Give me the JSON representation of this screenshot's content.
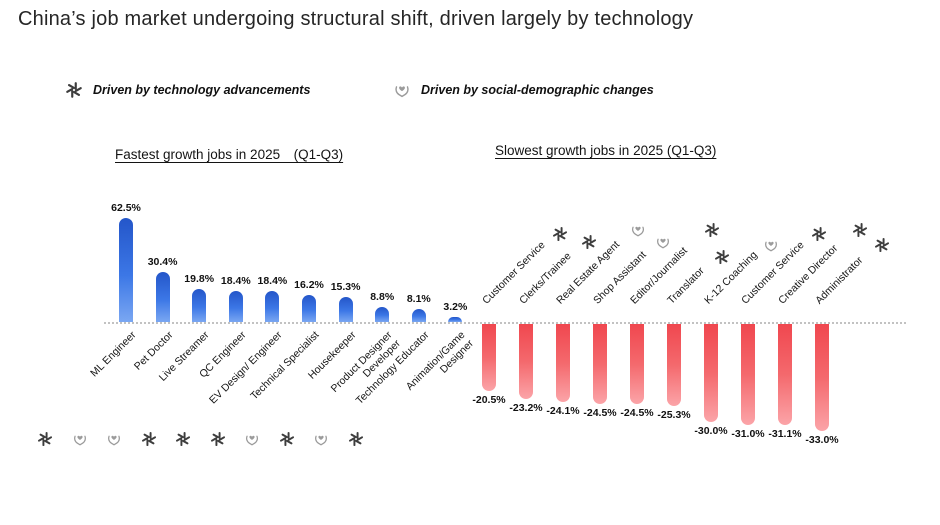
{
  "page_title": "China’s job market undergoing structural shift, driven largely by technology",
  "legend": {
    "items": [
      {
        "label": "Driven by technology advancements",
        "icon": "openai-logo-icon",
        "driver": "tech"
      },
      {
        "label": "Driven by social-demographic changes",
        "icon": "heart-hands-icon",
        "driver": "social"
      }
    ]
  },
  "colors": {
    "positive_bar": "#2a66dd",
    "negative_bar": "#f2575b",
    "tech_icon": "#3d3d3d",
    "social_icon": "#9b9b9b",
    "baseline": "#c2c2c2"
  },
  "chart_data": [
    {
      "type": "bar",
      "title": "Fastest growth jobs in 2025　(Q1-Q3)",
      "categories": [
        "ML Engineer",
        "Pet Doctor",
        "Live Streamer",
        "QC Engineer",
        "EV Design/ Engineer",
        "Technical Specialist",
        "Housekeeper",
        "Product Designer\nDeveloper",
        "Technology Educator",
        "Animation/Game Designer"
      ],
      "values": [
        62.5,
        30.4,
        19.8,
        18.4,
        18.4,
        16.2,
        15.3,
        8.8,
        8.1,
        3.2
      ],
      "value_labels": [
        "62.5%",
        "30.4%",
        "19.8%",
        "18.4%",
        "18.4%",
        "16.2%",
        "15.3%",
        "8.8%",
        "8.1%",
        "3.2%"
      ],
      "drivers": [
        "tech",
        "social",
        "social",
        "tech",
        "tech",
        "tech",
        "social",
        "tech",
        "social",
        "tech"
      ],
      "ylim": [
        0,
        70
      ],
      "bar_color": "#2a66dd",
      "legend_position": "top"
    },
    {
      "type": "bar",
      "title": "Slowest growth jobs in 2025 (Q1-Q3)",
      "categories": [
        "Customer Service",
        "Clerks/Trainee",
        "Real Estate Agent",
        "Shop Assistant",
        "Editor/Journalist",
        "Translator",
        "K-12 Coaching",
        "Customer Service",
        "Creative Director",
        "Administrator"
      ],
      "values": [
        -20.5,
        -23.2,
        -24.1,
        -24.5,
        -24.5,
        -25.3,
        -30.0,
        -31.0,
        -31.1,
        -33.0
      ],
      "value_labels": [
        "-20.5%",
        "-23.2%",
        "-24.1%",
        "-24.5%",
        "-24.5%",
        "-25.3%",
        "-30.0%",
        "-31.0%",
        "-31.1%",
        "-33.0%"
      ],
      "drivers": [
        "tech",
        "tech",
        "social",
        "social",
        "tech",
        "tech",
        "social",
        "tech",
        "tech",
        "tech"
      ],
      "ylim": [
        -35,
        0
      ],
      "bar_color": "#f2575b",
      "legend_position": "top"
    }
  ]
}
